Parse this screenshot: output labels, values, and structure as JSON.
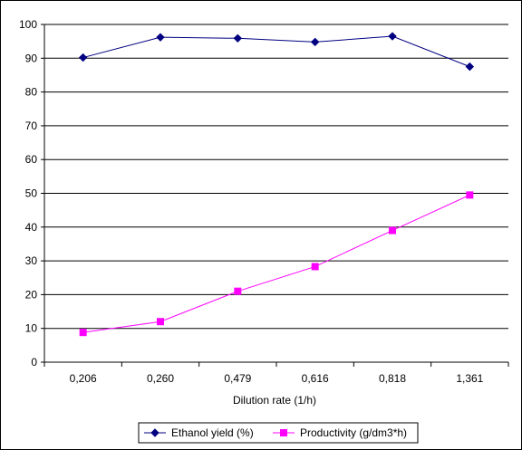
{
  "chart_data": {
    "type": "line",
    "title": "",
    "xlabel": "Dilution rate (1/h)",
    "ylabel": "",
    "categories": [
      "0,206",
      "0,260",
      "0,479",
      "0,616",
      "0,818",
      "1,361"
    ],
    "ylim": [
      0,
      100
    ],
    "yticks": [
      0,
      10,
      20,
      30,
      40,
      50,
      60,
      70,
      80,
      90,
      100
    ],
    "grid": "horizontal",
    "legend_position": "bottom",
    "series": [
      {
        "name": "Ethanol yield (%)",
        "values": [
          90.2,
          96.2,
          95.9,
          94.8,
          96.5,
          87.5
        ],
        "color": "#000080",
        "marker": "diamond"
      },
      {
        "name": "Productivity (g/dm3*h)",
        "values": [
          8.8,
          12.0,
          21.0,
          28.3,
          39.0,
          49.5
        ],
        "color": "#FF00FF",
        "marker": "square"
      }
    ]
  }
}
